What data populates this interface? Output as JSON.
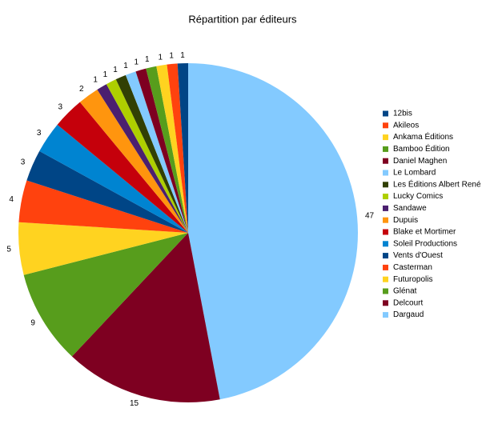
{
  "chart_data": {
    "type": "pie",
    "title": "Répartition par éditeurs",
    "categories": [
      "12bis",
      "Akileos",
      "Ankama Éditions",
      "Bamboo Édition",
      "Daniel Maghen",
      "Le Lombard",
      "Les Éditions Albert René",
      "Lucky Comics",
      "Sandawe",
      "Dupuis",
      "Blake et Mortimer",
      "Soleil Productions",
      "Vents d'Ouest",
      "Casterman",
      "Futuropolis",
      "Glénat",
      "Delcourt",
      "Dargaud"
    ],
    "values": [
      1,
      1,
      1,
      1,
      1,
      1,
      1,
      1,
      1,
      2,
      3,
      3,
      3,
      4,
      5,
      9,
      15,
      47
    ],
    "colors": [
      "#004586",
      "#ff420e",
      "#ffd320",
      "#579d1c",
      "#7e0021",
      "#83caff",
      "#314004",
      "#aecf00",
      "#4b1f6f",
      "#ff950e",
      "#c5000b",
      "#0084d1",
      "#004586",
      "#ff420e",
      "#ffd320",
      "#579d1c",
      "#7e0021",
      "#83caff"
    ],
    "legend": "right"
  }
}
